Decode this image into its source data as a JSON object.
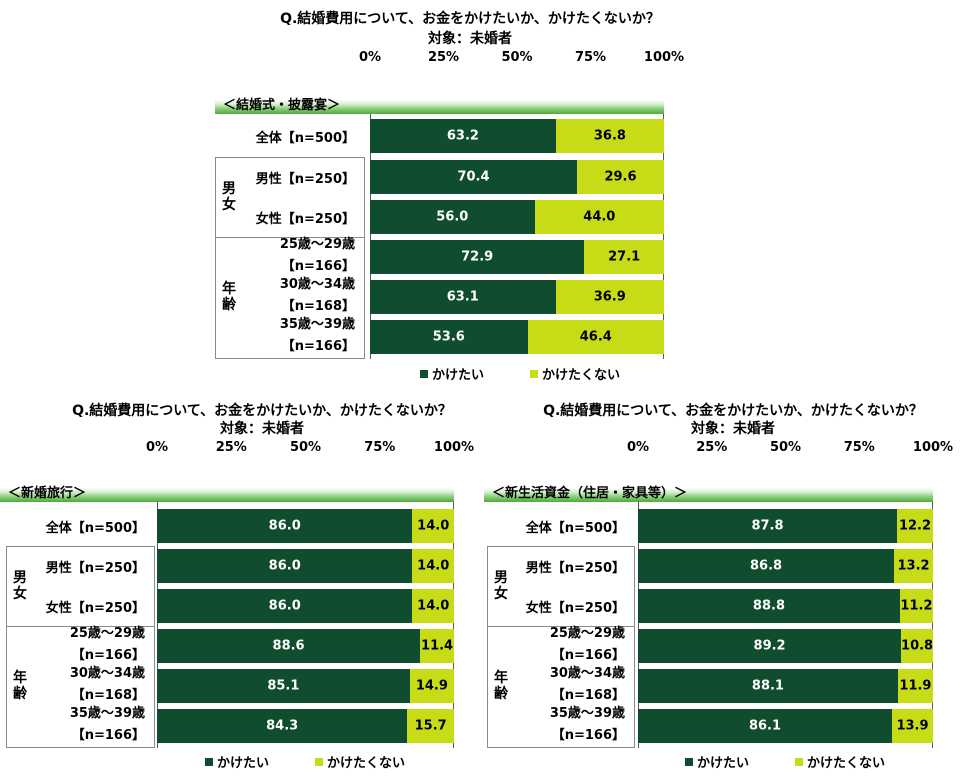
{
  "colors": {
    "spend": "#0f4d2e",
    "nospend": "#c7dc16"
  },
  "common": {
    "title": "Q.結婚費用について、お金をかけたいか、かけたくないか？",
    "subtitle": "対象：未婚者",
    "ticks": [
      "0%",
      "25%",
      "50%",
      "75%",
      "100%"
    ],
    "group_gender": "男女",
    "group_age": "年齢",
    "row_labels": [
      [
        "全体【n=500】"
      ],
      [
        "男性【n=250】"
      ],
      [
        "女性【n=250】"
      ],
      [
        "25歳～29歳",
        "【n=166】"
      ],
      [
        "30歳～34歳",
        "【n=168】"
      ],
      [
        "35歳～39歳",
        "【n=166】"
      ]
    ],
    "legend": [
      "かけたい",
      "かけたくない"
    ]
  },
  "chart_data": [
    {
      "type": "bar",
      "section": "＜結婚式・披露宴＞",
      "categories": [
        "全体【n=500】",
        "男性【n=250】",
        "女性【n=250】",
        "25歳～29歳【n=166】",
        "30歳～34歳【n=168】",
        "35歳～39歳【n=166】"
      ],
      "series": [
        {
          "name": "かけたい",
          "values": [
            63.2,
            70.4,
            56.0,
            72.9,
            63.1,
            53.6
          ],
          "labels": [
            "63.2",
            "70.4",
            "56.0",
            "72.9",
            "63.1",
            "53.6"
          ]
        },
        {
          "name": "かけたくない",
          "values": [
            36.8,
            29.6,
            44.0,
            27.1,
            36.9,
            46.4
          ],
          "labels": [
            "36.8",
            "29.6",
            "44.0",
            "27.1",
            "36.9",
            "46.4"
          ]
        }
      ],
      "xlim": [
        0,
        100
      ]
    },
    {
      "type": "bar",
      "section": "＜新婚旅行＞",
      "categories": [
        "全体【n=500】",
        "男性【n=250】",
        "女性【n=250】",
        "25歳～29歳【n=166】",
        "30歳～34歳【n=168】",
        "35歳～39歳【n=166】"
      ],
      "series": [
        {
          "name": "かけたい",
          "values": [
            86.0,
            86.0,
            86.0,
            88.6,
            85.1,
            84.3
          ],
          "labels": [
            "86.0",
            "86.0",
            "86.0",
            "88.6",
            "85.1",
            "84.3"
          ]
        },
        {
          "name": "かけたくない",
          "values": [
            14.0,
            14.0,
            14.0,
            11.4,
            14.9,
            15.7
          ],
          "labels": [
            "14.0",
            "14.0",
            "14.0",
            "11.4",
            "14.9",
            "15.7"
          ]
        }
      ],
      "xlim": [
        0,
        100
      ]
    },
    {
      "type": "bar",
      "section": "＜新生活資金（住居・家具等）＞",
      "categories": [
        "全体【n=500】",
        "男性【n=250】",
        "女性【n=250】",
        "25歳～29歳【n=166】",
        "30歳～34歳【n=168】",
        "35歳～39歳【n=166】"
      ],
      "series": [
        {
          "name": "かけたい",
          "values": [
            87.8,
            86.8,
            88.8,
            89.2,
            88.1,
            86.1
          ],
          "labels": [
            "87.8",
            "86.8",
            "88.8",
            "89.2",
            "88.1",
            "86.1"
          ]
        },
        {
          "name": "かけたくない",
          "values": [
            12.2,
            13.2,
            11.2,
            10.8,
            11.9,
            13.9
          ],
          "labels": [
            "12.2",
            "13.2",
            "11.2",
            "10.8",
            "11.9",
            "13.9"
          ]
        }
      ],
      "xlim": [
        0,
        100
      ]
    }
  ]
}
